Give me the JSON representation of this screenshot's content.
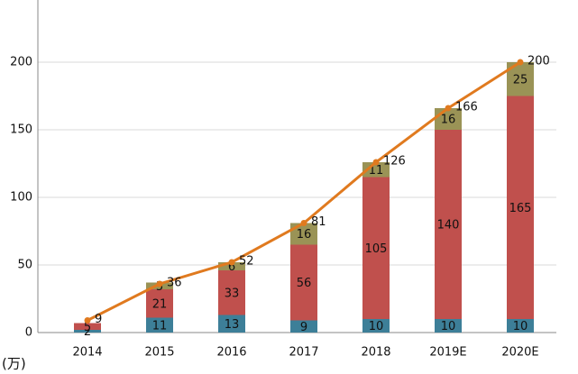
{
  "chart_data": {
    "type": "stacked-bar-line",
    "unit": "(万)",
    "categories": [
      "2014",
      "2015",
      "2016",
      "2017",
      "2018",
      "2019E",
      "2020E"
    ],
    "series": [
      {
        "color": "#3d7f98",
        "values": [
          2,
          11,
          13,
          9,
          10,
          10,
          10
        ]
      },
      {
        "color": "#c0504d",
        "values": [
          5,
          21,
          33,
          56,
          105,
          140,
          165
        ]
      },
      {
        "color": "#9a9356",
        "values": [
          null,
          5,
          6,
          16,
          11,
          16,
          25
        ]
      }
    ],
    "line": {
      "color": "#e07a1f",
      "values": [
        9,
        36,
        52,
        81,
        126,
        166,
        200
      ]
    },
    "ylim": [
      0,
      250
    ],
    "yticks": [
      0,
      50,
      100,
      150,
      200
    ],
    "grid": true
  }
}
